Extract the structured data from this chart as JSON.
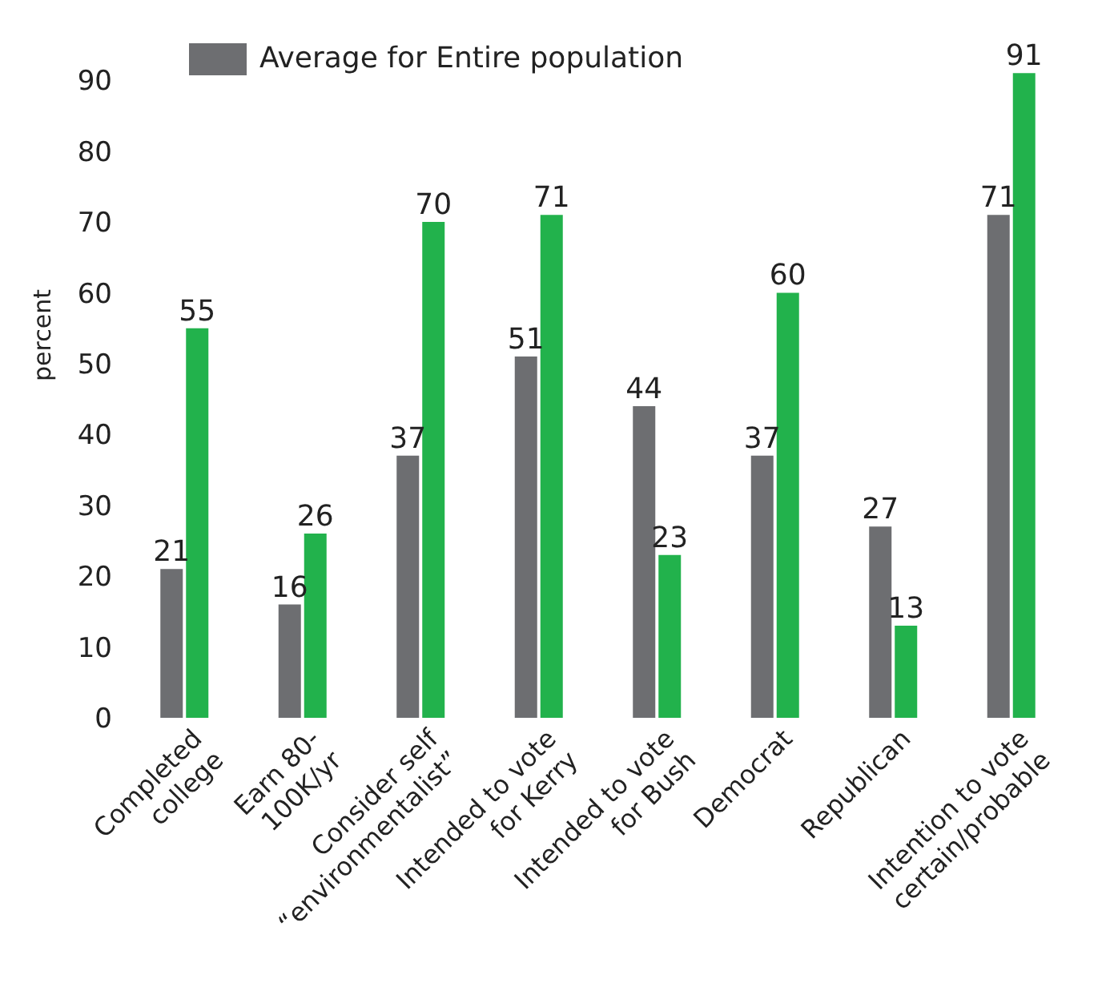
{
  "chart_data": {
    "type": "bar",
    "ylabel": "percent",
    "categories": [
      "Completed\ncollege",
      "Earn 80-\n100K/yr",
      "Consider self\n“environmentalist”",
      "Intended to vote\nfor Kerry",
      "Intended to vote\nfor Bush",
      "Democrat",
      "Republican",
      "Intention to vote\ncertain/probable"
    ],
    "series": [
      {
        "name": "Average for Entire population",
        "color": "#6d6e71",
        "values": [
          21,
          16,
          37,
          51,
          44,
          37,
          27,
          71
        ]
      },
      {
        "color": "#22b24c",
        "values": [
          55,
          26,
          70,
          71,
          23,
          60,
          13,
          91
        ]
      }
    ],
    "ylim": [
      0,
      95
    ],
    "yticks": [
      0,
      10,
      20,
      30,
      40,
      50,
      60,
      70,
      80,
      90
    ],
    "data_labels": true,
    "legend": "top left"
  }
}
